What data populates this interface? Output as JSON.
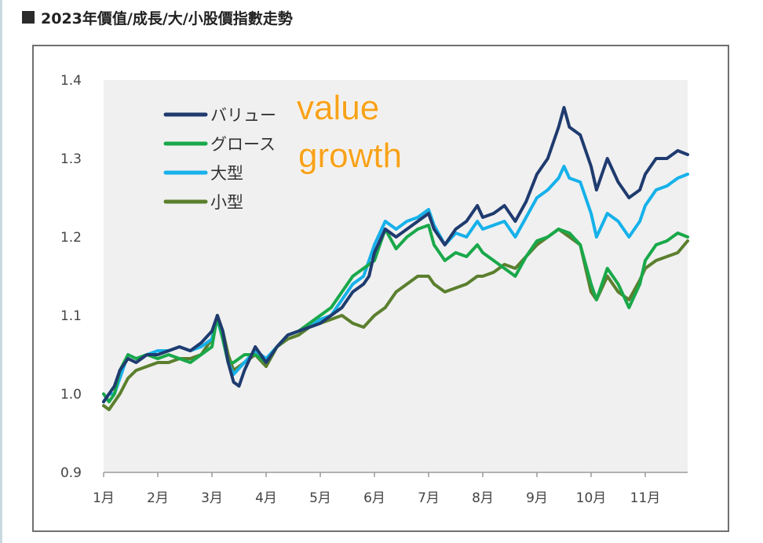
{
  "heading": {
    "icon": "square-bullet-icon",
    "text": "2023年價值/成長/大/小股價指數走勢"
  },
  "chart_data": {
    "type": "line",
    "categories": [
      "1月",
      "2月",
      "3月",
      "4月",
      "5月",
      "6月",
      "7月",
      "8月",
      "9月",
      "10月",
      "11月"
    ],
    "ylim": [
      0.9,
      1.4
    ],
    "yticks": [
      "0.9",
      "1.0",
      "1.1",
      "1.2",
      "1.3",
      "1.4"
    ],
    "grid": false,
    "legend_position": "top-left",
    "annotations": [
      {
        "text": "value",
        "color": "#f7a21b"
      },
      {
        "text": "growth",
        "color": "#f7a21b"
      }
    ],
    "series": [
      {
        "name": "バリュー",
        "color": "#1f3b6f",
        "points": [
          [
            1,
            0.99
          ],
          [
            1.1,
            1.0
          ],
          [
            1.2,
            1.01
          ],
          [
            1.3,
            1.03
          ],
          [
            1.45,
            1.045
          ],
          [
            1.6,
            1.04
          ],
          [
            1.8,
            1.05
          ],
          [
            2,
            1.05
          ],
          [
            2.2,
            1.055
          ],
          [
            2.4,
            1.06
          ],
          [
            2.6,
            1.055
          ],
          [
            2.8,
            1.065
          ],
          [
            3,
            1.08
          ],
          [
            3.1,
            1.1
          ],
          [
            3.2,
            1.08
          ],
          [
            3.3,
            1.04
          ],
          [
            3.4,
            1.015
          ],
          [
            3.5,
            1.01
          ],
          [
            3.6,
            1.03
          ],
          [
            3.8,
            1.06
          ],
          [
            4,
            1.04
          ],
          [
            4.2,
            1.06
          ],
          [
            4.4,
            1.075
          ],
          [
            4.6,
            1.08
          ],
          [
            4.8,
            1.085
          ],
          [
            5,
            1.09
          ],
          [
            5.2,
            1.1
          ],
          [
            5.4,
            1.11
          ],
          [
            5.6,
            1.13
          ],
          [
            5.8,
            1.14
          ],
          [
            5.9,
            1.15
          ],
          [
            6,
            1.18
          ],
          [
            6.2,
            1.21
          ],
          [
            6.4,
            1.2
          ],
          [
            6.6,
            1.21
          ],
          [
            6.8,
            1.22
          ],
          [
            7,
            1.23
          ],
          [
            7.1,
            1.21
          ],
          [
            7.3,
            1.19
          ],
          [
            7.5,
            1.21
          ],
          [
            7.7,
            1.22
          ],
          [
            7.9,
            1.24
          ],
          [
            8,
            1.225
          ],
          [
            8.2,
            1.23
          ],
          [
            8.4,
            1.24
          ],
          [
            8.6,
            1.22
          ],
          [
            8.8,
            1.245
          ],
          [
            9,
            1.28
          ],
          [
            9.2,
            1.3
          ],
          [
            9.4,
            1.34
          ],
          [
            9.5,
            1.365
          ],
          [
            9.6,
            1.34
          ],
          [
            9.8,
            1.33
          ],
          [
            10,
            1.29
          ],
          [
            10.1,
            1.26
          ],
          [
            10.3,
            1.3
          ],
          [
            10.5,
            1.27
          ],
          [
            10.7,
            1.25
          ],
          [
            10.9,
            1.26
          ],
          [
            11,
            1.28
          ],
          [
            11.2,
            1.3
          ],
          [
            11.4,
            1.3
          ],
          [
            11.6,
            1.31
          ],
          [
            11.8,
            1.305
          ]
        ]
      },
      {
        "name": "グロース",
        "color": "#19a84a",
        "points": [
          [
            1,
            1.0
          ],
          [
            1.1,
            0.99
          ],
          [
            1.2,
            1.0
          ],
          [
            1.3,
            1.03
          ],
          [
            1.45,
            1.05
          ],
          [
            1.6,
            1.045
          ],
          [
            1.8,
            1.05
          ],
          [
            2,
            1.045
          ],
          [
            2.2,
            1.05
          ],
          [
            2.4,
            1.045
          ],
          [
            2.6,
            1.04
          ],
          [
            2.8,
            1.05
          ],
          [
            3,
            1.06
          ],
          [
            3.1,
            1.1
          ],
          [
            3.2,
            1.07
          ],
          [
            3.3,
            1.04
          ],
          [
            3.4,
            1.04
          ],
          [
            3.6,
            1.05
          ],
          [
            3.8,
            1.05
          ],
          [
            4,
            1.04
          ],
          [
            4.2,
            1.06
          ],
          [
            4.4,
            1.075
          ],
          [
            4.6,
            1.08
          ],
          [
            4.8,
            1.09
          ],
          [
            5,
            1.1
          ],
          [
            5.2,
            1.11
          ],
          [
            5.4,
            1.13
          ],
          [
            5.6,
            1.15
          ],
          [
            5.8,
            1.16
          ],
          [
            6,
            1.17
          ],
          [
            6.1,
            1.19
          ],
          [
            6.2,
            1.21
          ],
          [
            6.4,
            1.185
          ],
          [
            6.6,
            1.2
          ],
          [
            6.8,
            1.21
          ],
          [
            7,
            1.215
          ],
          [
            7.1,
            1.19
          ],
          [
            7.3,
            1.17
          ],
          [
            7.5,
            1.18
          ],
          [
            7.7,
            1.175
          ],
          [
            7.9,
            1.19
          ],
          [
            8,
            1.18
          ],
          [
            8.2,
            1.17
          ],
          [
            8.4,
            1.16
          ],
          [
            8.6,
            1.15
          ],
          [
            8.8,
            1.175
          ],
          [
            9,
            1.195
          ],
          [
            9.2,
            1.2
          ],
          [
            9.4,
            1.21
          ],
          [
            9.6,
            1.205
          ],
          [
            9.8,
            1.19
          ],
          [
            10,
            1.14
          ],
          [
            10.1,
            1.12
          ],
          [
            10.3,
            1.16
          ],
          [
            10.5,
            1.14
          ],
          [
            10.7,
            1.11
          ],
          [
            10.9,
            1.14
          ],
          [
            11,
            1.17
          ],
          [
            11.2,
            1.19
          ],
          [
            11.4,
            1.195
          ],
          [
            11.6,
            1.205
          ],
          [
            11.8,
            1.2
          ]
        ]
      },
      {
        "name": "大型",
        "color": "#16b1ea",
        "points": [
          [
            1,
            0.99
          ],
          [
            1.1,
            1.0
          ],
          [
            1.2,
            1.0
          ],
          [
            1.3,
            1.02
          ],
          [
            1.45,
            1.05
          ],
          [
            1.6,
            1.045
          ],
          [
            1.8,
            1.05
          ],
          [
            2,
            1.055
          ],
          [
            2.2,
            1.055
          ],
          [
            2.4,
            1.06
          ],
          [
            2.6,
            1.055
          ],
          [
            2.8,
            1.06
          ],
          [
            3,
            1.07
          ],
          [
            3.1,
            1.095
          ],
          [
            3.2,
            1.07
          ],
          [
            3.3,
            1.04
          ],
          [
            3.4,
            1.025
          ],
          [
            3.6,
            1.04
          ],
          [
            3.8,
            1.055
          ],
          [
            4,
            1.045
          ],
          [
            4.2,
            1.06
          ],
          [
            4.4,
            1.075
          ],
          [
            4.6,
            1.08
          ],
          [
            4.8,
            1.085
          ],
          [
            5,
            1.095
          ],
          [
            5.2,
            1.1
          ],
          [
            5.4,
            1.12
          ],
          [
            5.6,
            1.14
          ],
          [
            5.8,
            1.15
          ],
          [
            6,
            1.19
          ],
          [
            6.2,
            1.22
          ],
          [
            6.4,
            1.21
          ],
          [
            6.6,
            1.22
          ],
          [
            6.8,
            1.225
          ],
          [
            7,
            1.235
          ],
          [
            7.1,
            1.215
          ],
          [
            7.3,
            1.19
          ],
          [
            7.5,
            1.205
          ],
          [
            7.7,
            1.2
          ],
          [
            7.9,
            1.22
          ],
          [
            8,
            1.21
          ],
          [
            8.2,
            1.215
          ],
          [
            8.4,
            1.22
          ],
          [
            8.6,
            1.2
          ],
          [
            8.8,
            1.225
          ],
          [
            9,
            1.25
          ],
          [
            9.2,
            1.26
          ],
          [
            9.4,
            1.275
          ],
          [
            9.5,
            1.29
          ],
          [
            9.6,
            1.275
          ],
          [
            9.8,
            1.27
          ],
          [
            10,
            1.23
          ],
          [
            10.1,
            1.2
          ],
          [
            10.3,
            1.23
          ],
          [
            10.5,
            1.22
          ],
          [
            10.7,
            1.2
          ],
          [
            10.9,
            1.22
          ],
          [
            11,
            1.24
          ],
          [
            11.2,
            1.26
          ],
          [
            11.4,
            1.265
          ],
          [
            11.6,
            1.275
          ],
          [
            11.8,
            1.28
          ]
        ]
      },
      {
        "name": "小型",
        "color": "#5b7f2e",
        "points": [
          [
            1,
            0.985
          ],
          [
            1.1,
            0.98
          ],
          [
            1.2,
            0.99
          ],
          [
            1.3,
            1.0
          ],
          [
            1.45,
            1.02
          ],
          [
            1.6,
            1.03
          ],
          [
            1.8,
            1.035
          ],
          [
            2,
            1.04
          ],
          [
            2.2,
            1.04
          ],
          [
            2.4,
            1.045
          ],
          [
            2.6,
            1.045
          ],
          [
            2.8,
            1.05
          ],
          [
            3,
            1.07
          ],
          [
            3.1,
            1.1
          ],
          [
            3.2,
            1.08
          ],
          [
            3.3,
            1.05
          ],
          [
            3.4,
            1.03
          ],
          [
            3.6,
            1.04
          ],
          [
            3.8,
            1.05
          ],
          [
            4,
            1.035
          ],
          [
            4.2,
            1.06
          ],
          [
            4.4,
            1.07
          ],
          [
            4.6,
            1.075
          ],
          [
            4.8,
            1.085
          ],
          [
            5,
            1.09
          ],
          [
            5.2,
            1.095
          ],
          [
            5.4,
            1.1
          ],
          [
            5.6,
            1.09
          ],
          [
            5.8,
            1.085
          ],
          [
            6,
            1.1
          ],
          [
            6.2,
            1.11
          ],
          [
            6.4,
            1.13
          ],
          [
            6.6,
            1.14
          ],
          [
            6.8,
            1.15
          ],
          [
            7,
            1.15
          ],
          [
            7.1,
            1.14
          ],
          [
            7.3,
            1.13
          ],
          [
            7.5,
            1.135
          ],
          [
            7.7,
            1.14
          ],
          [
            7.9,
            1.15
          ],
          [
            8,
            1.15
          ],
          [
            8.2,
            1.155
          ],
          [
            8.4,
            1.165
          ],
          [
            8.6,
            1.16
          ],
          [
            8.8,
            1.175
          ],
          [
            9,
            1.19
          ],
          [
            9.2,
            1.2
          ],
          [
            9.4,
            1.21
          ],
          [
            9.6,
            1.2
          ],
          [
            9.8,
            1.19
          ],
          [
            10,
            1.13
          ],
          [
            10.1,
            1.12
          ],
          [
            10.3,
            1.15
          ],
          [
            10.5,
            1.13
          ],
          [
            10.7,
            1.12
          ],
          [
            10.9,
            1.145
          ],
          [
            11,
            1.16
          ],
          [
            11.2,
            1.17
          ],
          [
            11.4,
            1.175
          ],
          [
            11.6,
            1.18
          ],
          [
            11.8,
            1.195
          ]
        ]
      }
    ]
  }
}
